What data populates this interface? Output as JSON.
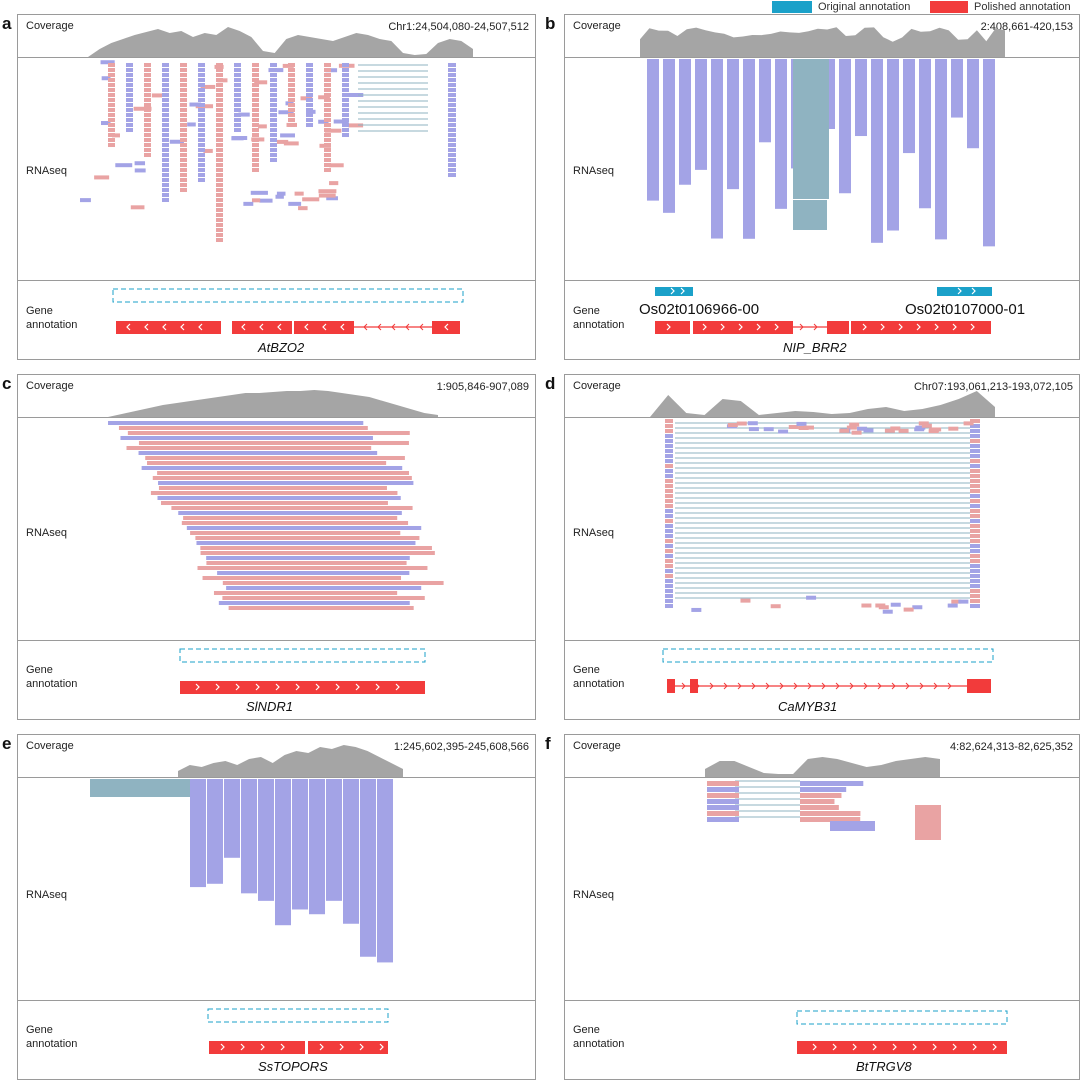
{
  "legend": {
    "original": {
      "label": "Original annotation",
      "color": "#1ba1c9"
    },
    "polished": {
      "label": "Polished annotation",
      "color": "#f23b3b"
    }
  },
  "colors": {
    "coverage": "#a5a5a5",
    "read_forward": "#e9a3a3",
    "read_reverse": "#a3a3e6",
    "junction": "#8fb3c1",
    "polished": "#f23b3b",
    "original": "#1ba1c9"
  },
  "row_labels": {
    "coverage": "Coverage",
    "rnaseq": "RNAseq",
    "gene_line1": "Gene",
    "gene_line2": "annotation"
  },
  "panels": {
    "a": {
      "letter": "a",
      "coords": "Chr1:24,504,080-24,507,512",
      "gene": "AtBZO2"
    },
    "b": {
      "letter": "b",
      "coords": "2:408,661-420,153",
      "gene": "NIP_BRR2",
      "transcripts": [
        "Os02t0106966-00",
        "Os02t0107000-01"
      ]
    },
    "c": {
      "letter": "c",
      "coords": "1:905,846-907,089",
      "gene": "SlNDR1"
    },
    "d": {
      "letter": "d",
      "coords": "Chr07:193,061,213-193,072,105",
      "gene": "CaMYB31"
    },
    "e": {
      "letter": "e",
      "coords": "1:245,602,395-245,608,566",
      "gene": "SsTOPORS"
    },
    "f": {
      "letter": "f",
      "coords": "4:82,624,313-82,625,352",
      "gene": "BtTRGV8"
    }
  }
}
